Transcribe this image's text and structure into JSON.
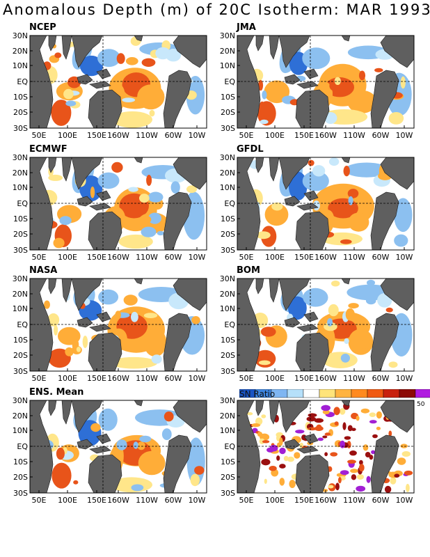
{
  "figure": {
    "title": "Anomalous Depth (m) of 20C Isotherm: MAR 1993",
    "lat_ticks": [
      "30N",
      "20N",
      "10N",
      "EQ",
      "10S",
      "20S",
      "30S"
    ],
    "lon_ticks": [
      "50E",
      "100E",
      "150E",
      "160W",
      "110W",
      "60W",
      "10W"
    ]
  },
  "panels": [
    {
      "title": "NCEP"
    },
    {
      "title": "JMA"
    },
    {
      "title": "ECMWF"
    },
    {
      "title": "GFDL"
    },
    {
      "title": "NASA"
    },
    {
      "title": "BOM"
    },
    {
      "title": "ENS. Mean"
    },
    {
      "title": ""
    }
  ],
  "legend": {
    "title": "SN Ratio",
    "end_label": "50",
    "colors": [
      "#1a55c4",
      "#3f86e0",
      "#7fb6f2",
      "#b6e0fa",
      "#ffffff",
      "#ffe47a",
      "#ffb340",
      "#ff8a1f",
      "#f05a12",
      "#c8210e",
      "#8c0a06",
      "#b01ce0"
    ]
  },
  "colors": {
    "land": "#5f5f5f",
    "strong_negative": "#2e6fd6",
    "negative": "#8cc0f0",
    "weak_negative": "#c8e8fb",
    "weak_positive": "#ffe68a",
    "positive": "#ffad38",
    "strong_positive": "#e8541a",
    "extreme_positive": "#9a0f0f",
    "purple": "#a21fd4"
  }
}
